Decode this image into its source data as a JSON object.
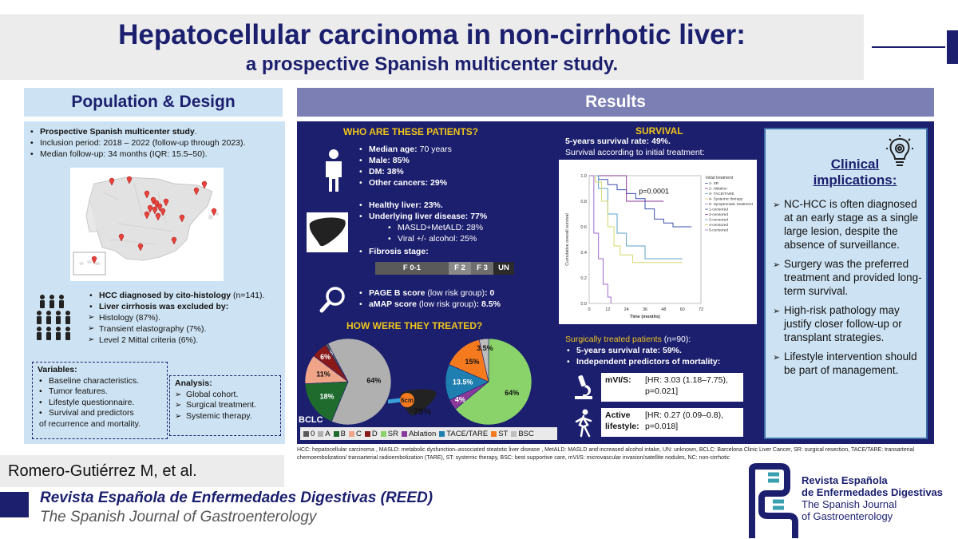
{
  "title": {
    "line1": "Hepatocellular carcinoma in non-cirrhotic liver:",
    "line2": "a prospective Spanish multicenter study."
  },
  "population": {
    "header": "Population & Design",
    "items": [
      {
        "bold": "Prospective Spanish multicenter study",
        "rest": "."
      },
      {
        "bold": "",
        "rest": "Inclusion period: 2018 – 2022 (follow-up through 2023)."
      },
      {
        "bold": "",
        "rest": "Median follow-up: 34 months (IQR: 15.5–50)."
      }
    ],
    "hcc_line": "HCC diagnosed by cito-histology",
    "hcc_n": " (n=141).",
    "cirrhosis_line": "Liver cirrhosis was excluded by:",
    "exclusions": [
      "Histology (87%).",
      "Transient elastography (7%).",
      "Level 2 Mittal criteria (6%)."
    ]
  },
  "variables": {
    "title": "Variables:",
    "items": [
      "Baseline characteristics.",
      "Tumor features.",
      "Lifestyle questionnaire.",
      "Survival and predictors"
    ],
    "tail": "of recurrence and mortality."
  },
  "analysis": {
    "title": "Analysis:",
    "items": [
      "Global cohort.",
      "Surgical treatment.",
      "Systemic therapy."
    ]
  },
  "author": "Romero-Gutiérrez M, et al.",
  "journal": {
    "title": "Revista Española de Enfermedades Digestivas (REED)",
    "subtitle": "The Spanish Journal of Gastroenterology"
  },
  "results": {
    "header": "Results"
  },
  "who": {
    "header": "WHO ARE THESE PATIENTS?",
    "demographics": [
      {
        "label": "Median age: ",
        "value": "70 years"
      },
      {
        "label": "Male: ",
        "value": "85%"
      },
      {
        "label": "DM: ",
        "value": "38%"
      },
      {
        "label": "Other cancers: ",
        "value": "29%"
      }
    ],
    "healthy": "Healthy liver: 23%.",
    "underlying": "Underlying liver disease: 77%",
    "sub": [
      "MASLD+MetALD: 28%",
      "Viral +/- alcohol: 25%"
    ],
    "fibrosis_label": "Fibrosis stage:",
    "fibrosis_segments": [
      {
        "label": "F 0-1",
        "color": "#5a5a5a"
      },
      {
        "label": "F 2",
        "color": "#8a8a8a"
      },
      {
        "label": "F 3",
        "color": "#6e6e6e"
      },
      {
        "label": "UN",
        "color": "#2a2a2a"
      }
    ],
    "scores": [
      {
        "label": "PAGE B score",
        "note": " (low risk group)",
        "value": ": 0"
      },
      {
        "label": "aMAP score",
        "note": " (low risk group)",
        "value": ": 8.5%"
      }
    ]
  },
  "treated": {
    "header": "HOW WERE THEY TREATED?",
    "bclc_label": "BCLC",
    "tumor_size": "6cm",
    "tumor_pct": "75%"
  },
  "legend": [
    {
      "label": "0",
      "color": "#5a5a5a"
    },
    {
      "label": "A",
      "color": "#b0b0b0"
    },
    {
      "label": "B",
      "color": "#1f6b2e"
    },
    {
      "label": "C",
      "color": "#f0a488"
    },
    {
      "label": "D",
      "color": "#8a1a1a"
    },
    {
      "label": "SR",
      "color": "#8ad36a"
    },
    {
      "label": "Ablation",
      "color": "#8a3a9a"
    },
    {
      "label": "TACE/TARE",
      "color": "#1f7fb0"
    },
    {
      "label": "ST",
      "color": "#f57a1e"
    },
    {
      "label": "BSC",
      "color": "#bdbdbd"
    }
  ],
  "chart_data": [
    {
      "type": "pie",
      "title": "BCLC",
      "slices": [
        {
          "label": "0",
          "value": 1,
          "color": "#5a5a5a"
        },
        {
          "label": "A",
          "value": 64,
          "color": "#b0b0b0"
        },
        {
          "label": "B",
          "value": 18,
          "color": "#1f6b2e"
        },
        {
          "label": "C",
          "value": 11,
          "color": "#f0a488"
        },
        {
          "label": "D",
          "value": 6,
          "color": "#8a1a1a"
        }
      ],
      "value_labels": [
        "1%",
        "64%",
        "18%",
        "11%",
        "6%"
      ]
    },
    {
      "type": "pie",
      "title": "Treatment",
      "slices": [
        {
          "label": "SR",
          "value": 64,
          "color": "#8ad36a"
        },
        {
          "label": "Ablation",
          "value": 4,
          "color": "#8a3a9a"
        },
        {
          "label": "TACE/TARE",
          "value": 13.5,
          "color": "#1f7fb0"
        },
        {
          "label": "ST",
          "value": 15,
          "color": "#f57a1e"
        },
        {
          "label": "BSC",
          "value": 3.5,
          "color": "#bdbdbd"
        }
      ],
      "value_labels": [
        "64%",
        "4%",
        "13.5%",
        "15%",
        "3.5%"
      ]
    },
    {
      "type": "line",
      "title": "Survival according to initial treatment",
      "xlabel": "Time (months)",
      "ylabel": "Cumulative overall survival",
      "xlim": [
        0,
        72
      ],
      "ylim": [
        0,
        1
      ],
      "xticks": [
        "0",
        "12",
        "24",
        "36",
        "48",
        "60",
        "72"
      ],
      "yticks": [
        "0.0",
        "0.2",
        "0.4",
        "0.6",
        "0.8",
        "1.0"
      ],
      "annotation": "p=0.0001",
      "legend_title": "Initial treatment",
      "legend_entries": [
        "1- SR",
        "2- Ablation",
        "3- TACE/TARE",
        "4- Systemic therapy",
        "5- Symptomatic treatment",
        "1-censored",
        "2-censored",
        "3-censored",
        "4-censored",
        "5-censored"
      ],
      "series": [
        {
          "name": "1- SR",
          "color": "#3a4fae",
          "x": [
            0,
            6,
            12,
            18,
            24,
            30,
            36,
            42,
            48,
            54,
            60,
            66
          ],
          "y": [
            1,
            0.97,
            0.93,
            0.89,
            0.86,
            0.82,
            0.74,
            0.66,
            0.63,
            0.6,
            0.6,
            0.6
          ]
        },
        {
          "name": "2- Ablation",
          "color": "#8a3a9a",
          "x": [
            0,
            12,
            24,
            36,
            48
          ],
          "y": [
            1,
            1,
            0.8,
            0.8,
            0.8
          ]
        },
        {
          "name": "3- TACE/TARE",
          "color": "#5aa0c8",
          "x": [
            0,
            6,
            12,
            18,
            24,
            36,
            48,
            60
          ],
          "y": [
            1,
            0.9,
            0.7,
            0.55,
            0.45,
            0.35,
            0.35,
            0.35
          ]
        },
        {
          "name": "4- Systemic therapy",
          "color": "#d6d86a",
          "x": [
            0,
            4,
            8,
            12,
            16,
            20,
            28,
            36,
            44,
            52,
            60
          ],
          "y": [
            1,
            0.95,
            0.8,
            0.6,
            0.45,
            0.38,
            0.32,
            0.32,
            0.32,
            0.32,
            0.32
          ]
        },
        {
          "name": "5- Symptomatic treatment",
          "color": "#a06ad0",
          "x": [
            0,
            3,
            6,
            9,
            12,
            14
          ],
          "y": [
            1,
            0.55,
            0.35,
            0.15,
            0.05,
            0
          ]
        }
      ]
    }
  ],
  "survival": {
    "header": "SURVIVAL",
    "rate": "5-years survival rate: 49%.",
    "subtitle": "Survival according to initial treatment:"
  },
  "surgical": {
    "title": "Surgically treated patients",
    "n": " (n=90):",
    "items": [
      "5-years survival rate: 59%.",
      "Independent predictors of mortality:"
    ],
    "hr": [
      {
        "label": "mVI/S:",
        "value": "[HR: 3.03 (1.18–7.75), p=0.021]"
      },
      {
        "label": "Active lifestyle:",
        "value": "[HR: 0.27 (0.09–0.8), p=0.018]"
      }
    ]
  },
  "clinical": {
    "header": "Clinical implications:",
    "items": [
      "NC-HCC is often diagnosed at an early stage as a single large lesion, despite the absence of surveillance.",
      "Surgery was the preferred treatment and provided long-term survival.",
      "High-risk pathology may justify closer follow-up or transplant strategies.",
      "Lifestyle intervention should be part of management."
    ]
  },
  "footnote": "HCC: hepatocellular carcinoma , MASLD: metabolic dysfunction–associated steatotic liver disease , MetALD: MASLD and increased alcohol intake, UN: unknown, BCLC: Barcelona Clinic Liver Cancer, SR: surgical resection, TACE/TARE: transarterial chemoembolization/ transarterial radioembolization (TARE), ST: systemic therapy, BSC: best supportive care, mVI/S: microvascular invasion/satellite nodules, NC: non-cirrhotic",
  "reed": {
    "l1": "Revista Española",
    "l2": "de Enfermedades Digestivas",
    "l3": "The Spanish Journal",
    "l4": "of Gastroenterology"
  }
}
